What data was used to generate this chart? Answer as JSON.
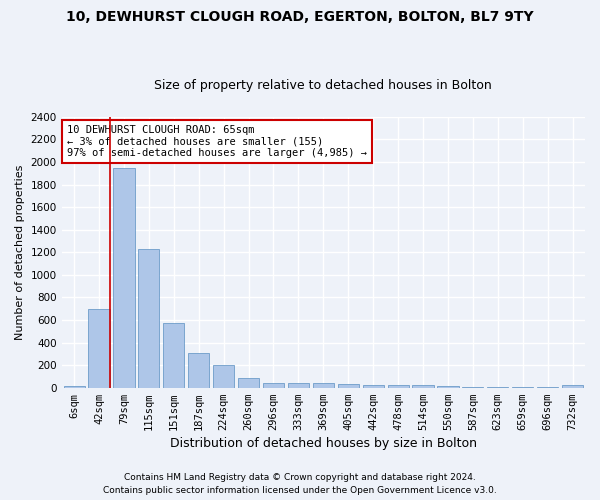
{
  "title": "10, DEWHURST CLOUGH ROAD, EGERTON, BOLTON, BL7 9TY",
  "subtitle": "Size of property relative to detached houses in Bolton",
  "xlabel": "Distribution of detached houses by size in Bolton",
  "ylabel": "Number of detached properties",
  "bar_labels": [
    "6sqm",
    "42sqm",
    "79sqm",
    "115sqm",
    "151sqm",
    "187sqm",
    "224sqm",
    "260sqm",
    "296sqm",
    "333sqm",
    "369sqm",
    "405sqm",
    "442sqm",
    "478sqm",
    "514sqm",
    "550sqm",
    "587sqm",
    "623sqm",
    "659sqm",
    "696sqm",
    "732sqm"
  ],
  "bar_values": [
    15,
    700,
    1950,
    1230,
    575,
    305,
    200,
    85,
    45,
    40,
    40,
    35,
    25,
    25,
    20,
    15,
    10,
    10,
    5,
    5,
    20
  ],
  "bar_color": "#aec6e8",
  "bar_edge_color": "#5a8fc2",
  "vline_color": "#cc0000",
  "annotation_text": "10 DEWHURST CLOUGH ROAD: 65sqm\n← 3% of detached houses are smaller (155)\n97% of semi-detached houses are larger (4,985) →",
  "annotation_box_color": "#cc0000",
  "ylim": [
    0,
    2400
  ],
  "yticks": [
    0,
    200,
    400,
    600,
    800,
    1000,
    1200,
    1400,
    1600,
    1800,
    2000,
    2200,
    2400
  ],
  "footnote1": "Contains HM Land Registry data © Crown copyright and database right 2024.",
  "footnote2": "Contains public sector information licensed under the Open Government Licence v3.0.",
  "background_color": "#eef2f9",
  "grid_color": "#ffffff",
  "title_fontsize": 10,
  "subtitle_fontsize": 9,
  "ylabel_fontsize": 8,
  "xlabel_fontsize": 9,
  "tick_fontsize": 7.5,
  "footnote_fontsize": 6.5
}
